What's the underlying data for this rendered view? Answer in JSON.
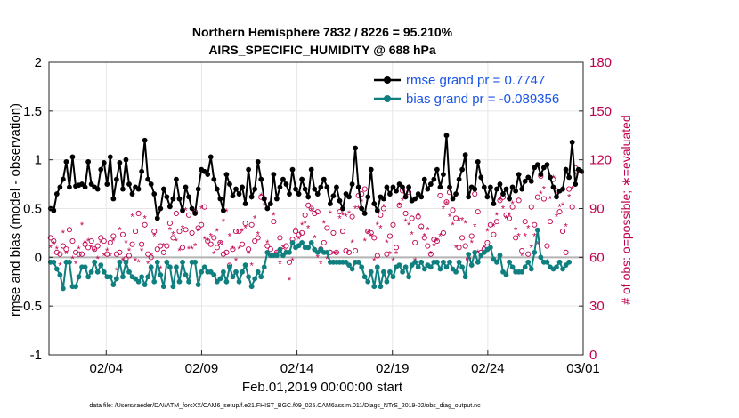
{
  "chart_data": {
    "type": "line",
    "title": "Northern Hemisphere 7832 / 8226 = 95.210%",
    "subtitle": "AIRS_SPECIFIC_HUMIDITY @ 688 hPa",
    "xlabel": "Feb.01,2019 00:00:00 start",
    "ylabel": "rmse and bias (model - observation)",
    "ylabel_right": "# of obs: o=possible; ∗=evaluated",
    "xlim": [
      0,
      28
    ],
    "ylim": [
      -1,
      2
    ],
    "ylim_right": [
      0,
      180
    ],
    "x_ticks": [
      {
        "value": 3,
        "label": "02/04"
      },
      {
        "value": 8,
        "label": "02/09"
      },
      {
        "value": 13,
        "label": "02/14"
      },
      {
        "value": 18,
        "label": "02/19"
      },
      {
        "value": 23,
        "label": "02/24"
      },
      {
        "value": 28,
        "label": "03/01"
      }
    ],
    "y_ticks": [
      "-1",
      "-0.5",
      "0",
      "0.5",
      "1",
      "1.5",
      "2"
    ],
    "y_ticks_right": [
      "0",
      "30",
      "60",
      "90",
      "120",
      "150",
      "180"
    ],
    "grid": true,
    "legend": {
      "position": "top-right",
      "entries": [
        "rmse grand pr = 0.7747",
        "bias grand pr = -0.089356"
      ]
    },
    "colors": {
      "rmse": "#000000",
      "bias": "#0f7f7f",
      "counts": "#c0004f",
      "legend_text": "#1a55e8",
      "zero_line": "#b3b3b3"
    },
    "series": [
      {
        "name": "rmse",
        "values": [
          0.5,
          0.48,
          0.65,
          0.72,
          0.8,
          0.98,
          0.72,
          1.03,
          0.73,
          0.74,
          0.75,
          0.72,
          0.98,
          0.75,
          0.72,
          0.7,
          0.9,
          0.97,
          0.75,
          1.03,
          0.6,
          0.8,
          0.97,
          0.7,
          1.0,
          0.75,
          0.65,
          0.72,
          0.7,
          0.88,
          1.2,
          0.8,
          0.75,
          0.65,
          0.4,
          0.5,
          0.7,
          0.62,
          0.52,
          0.6,
          0.8,
          0.6,
          0.48,
          0.72,
          0.62,
          0.5,
          0.45,
          0.7,
          0.9,
          0.88,
          0.85,
          1.03,
          0.8,
          0.7,
          0.6,
          0.48,
          0.85,
          0.75,
          0.63,
          0.7,
          0.65,
          0.72,
          0.55,
          0.9,
          0.62,
          0.7,
          0.98,
          0.8,
          0.6,
          0.5,
          0.55,
          0.85,
          0.6,
          0.72,
          0.8,
          0.75,
          0.65,
          0.9,
          0.7,
          0.65,
          0.8,
          0.7,
          0.62,
          0.9,
          0.7,
          0.65,
          0.72,
          0.8,
          0.72,
          0.55,
          0.63,
          0.72,
          0.58,
          0.5,
          0.65,
          0.62,
          0.75,
          1.12,
          0.72,
          0.5,
          0.45,
          0.62,
          0.9,
          0.55,
          0.48,
          0.62,
          0.6,
          0.72,
          0.65,
          0.72,
          0.68,
          0.75,
          0.72,
          0.62,
          0.72,
          0.58,
          0.6,
          0.65,
          0.62,
          0.8,
          0.7,
          0.75,
          0.8,
          0.9,
          0.72,
          0.85,
          1.25,
          0.72,
          0.6,
          0.65,
          0.8,
          0.9,
          1.05,
          0.62,
          0.72,
          0.7,
          0.98,
          0.82,
          0.72,
          0.62,
          0.72,
          0.55,
          0.7,
          0.75,
          0.65,
          0.7,
          0.6,
          0.72,
          0.68,
          0.85,
          0.7,
          0.78,
          0.82,
          0.78,
          0.92,
          0.95,
          0.85,
          0.92,
          0.95,
          0.82,
          0.72,
          0.62,
          0.68,
          0.7,
          0.9,
          0.82,
          1.18,
          0.75,
          0.9,
          0.88
        ]
      },
      {
        "name": "bias",
        "values": [
          -0.05,
          -0.05,
          -0.12,
          -0.18,
          -0.32,
          -0.05,
          -0.05,
          -0.3,
          -0.3,
          -0.2,
          -0.1,
          -0.1,
          -0.2,
          -0.15,
          -0.05,
          -0.15,
          -0.08,
          -0.15,
          -0.2,
          -0.2,
          -0.28,
          -0.22,
          -0.05,
          -0.2,
          -0.05,
          -0.15,
          -0.2,
          -0.22,
          -0.25,
          -0.2,
          -0.28,
          -0.2,
          -0.1,
          -0.25,
          -0.05,
          -0.18,
          -0.3,
          -0.05,
          -0.1,
          -0.3,
          -0.1,
          -0.25,
          -0.05,
          -0.18,
          -0.25,
          -0.05,
          -0.05,
          -0.28,
          -0.15,
          -0.1,
          -0.15,
          -0.15,
          -0.18,
          -0.25,
          -0.22,
          -0.15,
          -0.25,
          -0.1,
          -0.2,
          -0.15,
          -0.25,
          -0.15,
          -0.08,
          -0.2,
          -0.3,
          -0.22,
          -0.15,
          -0.2,
          -0.1,
          0.05,
          0.02,
          0.02,
          0.02,
          0.08,
          0.02,
          0.05,
          0.05,
          0.15,
          0.1,
          0.12,
          0.15,
          0.1,
          0.1,
          0.15,
          0.08,
          0.05,
          0.08,
          0.05,
          0.05,
          -0.05,
          -0.05,
          -0.05,
          -0.05,
          -0.05,
          -0.05,
          -0.08,
          -0.12,
          -0.05,
          -0.05,
          -0.1,
          -0.2,
          -0.25,
          -0.15,
          -0.3,
          -0.1,
          -0.3,
          -0.15,
          -0.25,
          -0.15,
          -0.2,
          -0.1,
          -0.08,
          -0.15,
          -0.1,
          -0.2,
          -0.08,
          -0.05,
          -0.1,
          -0.05,
          -0.12,
          -0.08,
          -0.1,
          -0.05,
          -0.05,
          -0.12,
          -0.05,
          -0.1,
          -0.05,
          -0.12,
          -0.15,
          -0.05,
          -0.1,
          -0.2,
          0.03,
          -0.08,
          0.05,
          -0.05,
          0.02,
          0.05,
          0.08,
          0.1,
          -0.02,
          -0.05,
          0.02,
          -0.15,
          -0.18,
          -0.05,
          -0.1,
          -0.15,
          -0.15,
          -0.15,
          -0.1,
          -0.05,
          -0.12,
          0.05,
          0.28,
          0.0,
          -0.05,
          -0.05,
          -0.1,
          -0.12,
          -0.1,
          -0.05,
          -0.12,
          -0.08,
          -0.05
        ]
      },
      {
        "name": "possible",
        "marker": "o",
        "values": [
          72,
          70,
          63,
          62,
          67,
          65,
          77,
          70,
          63,
          62,
          62,
          68,
          66,
          70,
          65,
          67,
          72,
          70,
          62,
          69,
          73,
          62,
          63,
          74,
          59,
          61,
          68,
          76,
          87,
          68,
          80,
          62,
          60,
          76,
          65,
          67,
          63,
          67,
          81,
          72,
          87,
          76,
          66,
          77,
          86,
          75,
          88,
          78,
          80,
          91,
          70,
          68,
          72,
          66,
          69,
          62,
          63,
          55,
          65,
          76,
          76,
          68,
          81,
          65,
          80,
          70,
          72,
          97,
          96,
          67,
          65,
          82,
          63,
          72,
          64,
          67,
          57,
          71,
          76,
          74,
          75,
          86,
          92,
          90,
          87,
          88,
          65,
          69,
          78,
          63,
          75,
          63,
          88,
          76,
          64,
          63,
          85,
          64,
          98,
          99,
          102,
          76,
          75,
          72,
          61,
          86,
          90,
          62,
          73,
          80,
          66,
          92,
          101,
          87,
          100,
          84,
          69,
          85,
          79,
          72,
          67,
          62,
          71,
          70,
          98,
          75,
          94,
          100,
          89,
          84,
          66,
          72,
          67,
          59,
          73,
          99,
          88,
          63,
          65,
          69,
          80,
          74,
          82,
          95,
          97,
          86,
          84,
          91,
          72,
          95,
          64,
          82,
          62,
          91,
          80,
          97,
          110,
          96,
          67,
          82,
          108,
          101,
          88,
          76,
          63,
          102,
          91,
          115
        ]
      },
      {
        "name": "evaluated",
        "marker": "*",
        "values": [
          66,
          68,
          65,
          55,
          75,
          62,
          57,
          59,
          56,
          65,
          80,
          69,
          70,
          66,
          64,
          59,
          69,
          61,
          64,
          61,
          70,
          52,
          77,
          58,
          69,
          64,
          85,
          58,
          57,
          64,
          84,
          56,
          61,
          73,
          56,
          53,
          67,
          56,
          77,
          74,
          70,
          64,
          78,
          89,
          65,
          65,
          67,
          76,
          90,
          71,
          70,
          73,
          62,
          76,
          68,
          82,
          88,
          73,
          65,
          58,
          65,
          76,
          78,
          62,
          55,
          84,
          74,
          98,
          92,
          69,
          93,
          86,
          62,
          56,
          66,
          63,
          46,
          58,
          77,
          71,
          80,
          81,
          78,
          89,
          72,
          60,
          56,
          81,
          59,
          87,
          62,
          62,
          84,
          86,
          85,
          87,
          69,
          90,
          90,
          94,
          70,
          75,
          73,
          58,
          80,
          78,
          91,
          69,
          62,
          58,
          62,
          92,
          95,
          82,
          80,
          74,
          58,
          86,
          77,
          73,
          77,
          62,
          67,
          70,
          73,
          90,
          93,
          85,
          80,
          66,
          83,
          83,
          81,
          59,
          69,
          79,
          63,
          61,
          66,
          76,
          66,
          79,
          86,
          95,
          90,
          84,
          86,
          93,
          77,
          73,
          61,
          73,
          78,
          66,
          73,
          68,
          99,
          102,
          57,
          96,
          109,
          85,
          91,
          92,
          79,
          97,
          102,
          111
        ]
      }
    ],
    "annotations": [
      "data file: /Users/raeder/DAI/ATM_forcXX/CAM6_setup/f.e21.FHIST_BGC.f09_025.CAM6assim.011/Diags_NTrS_2019-02/obs_diag_output.nc"
    ]
  }
}
